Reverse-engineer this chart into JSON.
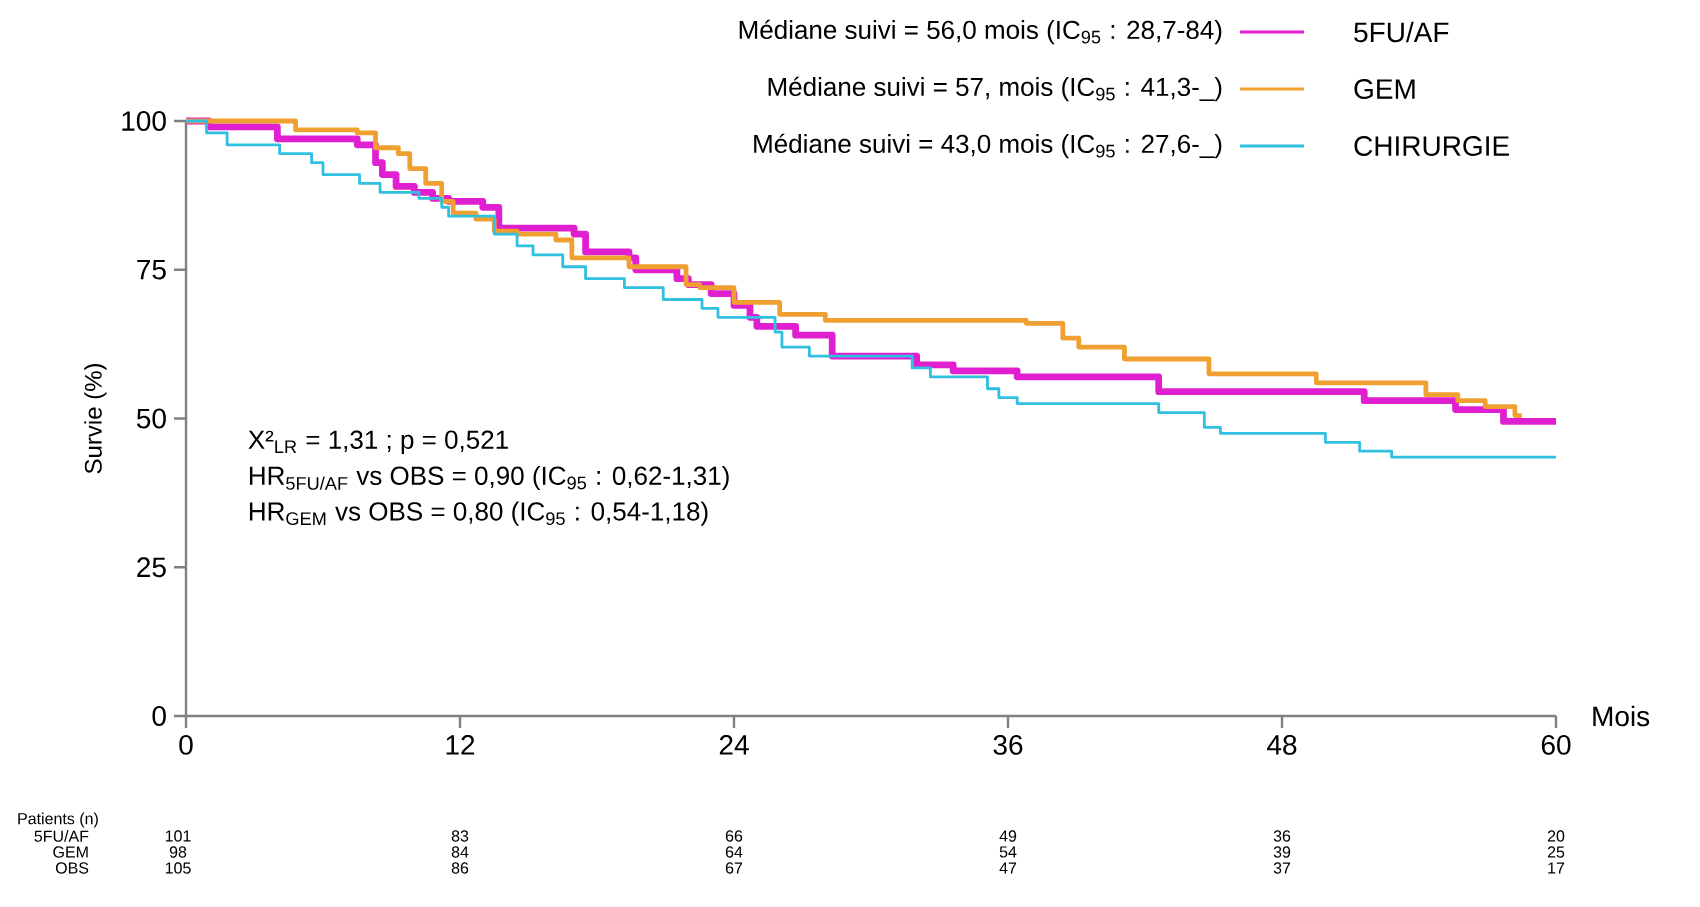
{
  "chart_data": {
    "type": "step",
    "xlabel": "Mois",
    "ylabel": "Survie (%)",
    "xlim": [
      0,
      60
    ],
    "ylim": [
      0,
      100
    ],
    "xticks": [
      0,
      12,
      24,
      36,
      48,
      60
    ],
    "yticks": [
      0,
      25,
      50,
      75,
      100
    ],
    "legend": "top right",
    "series": [
      {
        "name": "5FU/AF",
        "color": "#e020d0",
        "x": [
          0,
          1,
          4,
          7.5,
          8.3,
          8.6,
          9.2,
          10,
          10.8,
          11.5,
          13,
          13.7,
          17,
          17.5,
          19.4,
          19.7,
          21.5,
          22,
          23,
          24,
          24.7,
          25,
          26.7,
          28.3,
          32,
          33.6,
          36.4,
          42.6,
          51.6,
          55.6,
          57.7,
          60
        ],
        "values": [
          100,
          99,
          97,
          96,
          93,
          91,
          89,
          88,
          87,
          86.5,
          85.5,
          82,
          81,
          78,
          77,
          75,
          73.5,
          72.5,
          71,
          69,
          67,
          65.5,
          64,
          60.5,
          59,
          58,
          57,
          54.5,
          53,
          51.5,
          49.5,
          49.5
        ]
      },
      {
        "name": "GEM",
        "color": "#f0a030",
        "x": [
          0,
          4.8,
          7.5,
          8.3,
          9.3,
          9.8,
          10.5,
          11.2,
          11.7,
          12.7,
          13.5,
          14.5,
          16.2,
          16.9,
          19.4,
          21.9,
          22.5,
          24,
          26,
          28,
          36.8,
          38.4,
          39.1,
          41.1,
          44.8,
          49.5,
          54.3,
          55.7,
          56.9,
          58.2,
          58.5
        ],
        "values": [
          100,
          98.5,
          98,
          95.5,
          94.5,
          92,
          89.5,
          86.5,
          84.5,
          83.5,
          81.5,
          81,
          80,
          77,
          75.5,
          72.5,
          72,
          69.5,
          67.5,
          66.5,
          66,
          63.5,
          62,
          60,
          57.5,
          56,
          54,
          53,
          52,
          50.5,
          50.5
        ]
      },
      {
        "name": "CHIRURGIE",
        "color": "#30c0e0",
        "x": [
          0,
          0.9,
          1.8,
          4.1,
          5.5,
          6,
          7.6,
          8.5,
          10.2,
          11.2,
          11.5,
          13.5,
          14.5,
          15.2,
          16.5,
          17.5,
          19.2,
          20.9,
          22.6,
          23.3,
          25.8,
          26.1,
          27.3,
          31.8,
          32.6,
          35.1,
          35.6,
          36.4,
          42.6,
          44.6,
          45.3,
          49.9,
          51.4,
          52.8,
          60
        ],
        "values": [
          100,
          98,
          96,
          94.5,
          93,
          91,
          89.5,
          88,
          87,
          85.5,
          84,
          81,
          79,
          77.5,
          75.5,
          73.5,
          72,
          70,
          68.5,
          67,
          64.5,
          62,
          60.5,
          58.5,
          57,
          55,
          53.5,
          52.5,
          51,
          48.5,
          47.5,
          46,
          44.5,
          43.5,
          43.5
        ]
      }
    ],
    "annotations": [
      "Médiane suivi = 56,0 mois (IC$_{95}$ : 28,7-84)",
      "Médiane suivi = 57, mois (IC$_{95}$ : 41,3-_)",
      "Médiane suivi = 43,0 mois (IC$_{95}$ : 27,6-_)",
      "X²$_{LR}$ = 1,31 ; p = 0,521",
      "HR$_{5FU/AF}$ vs OBS = 0,90 (IC$_{95}$ : 0,62-1,31)",
      "HR$_{GEM}$ vs OBS = 0,80 (IC$_{95}$ : 0,54-1,18)",
      "Patients (n)",
      "5FU/AF",
      "GEM",
      "OBS",
      "101",
      "83",
      "66",
      "49",
      "36",
      "20",
      "98",
      "84",
      "64",
      "54",
      "39",
      "25",
      "105",
      "86",
      "67",
      "47",
      "37",
      "17"
    ]
  }
}
